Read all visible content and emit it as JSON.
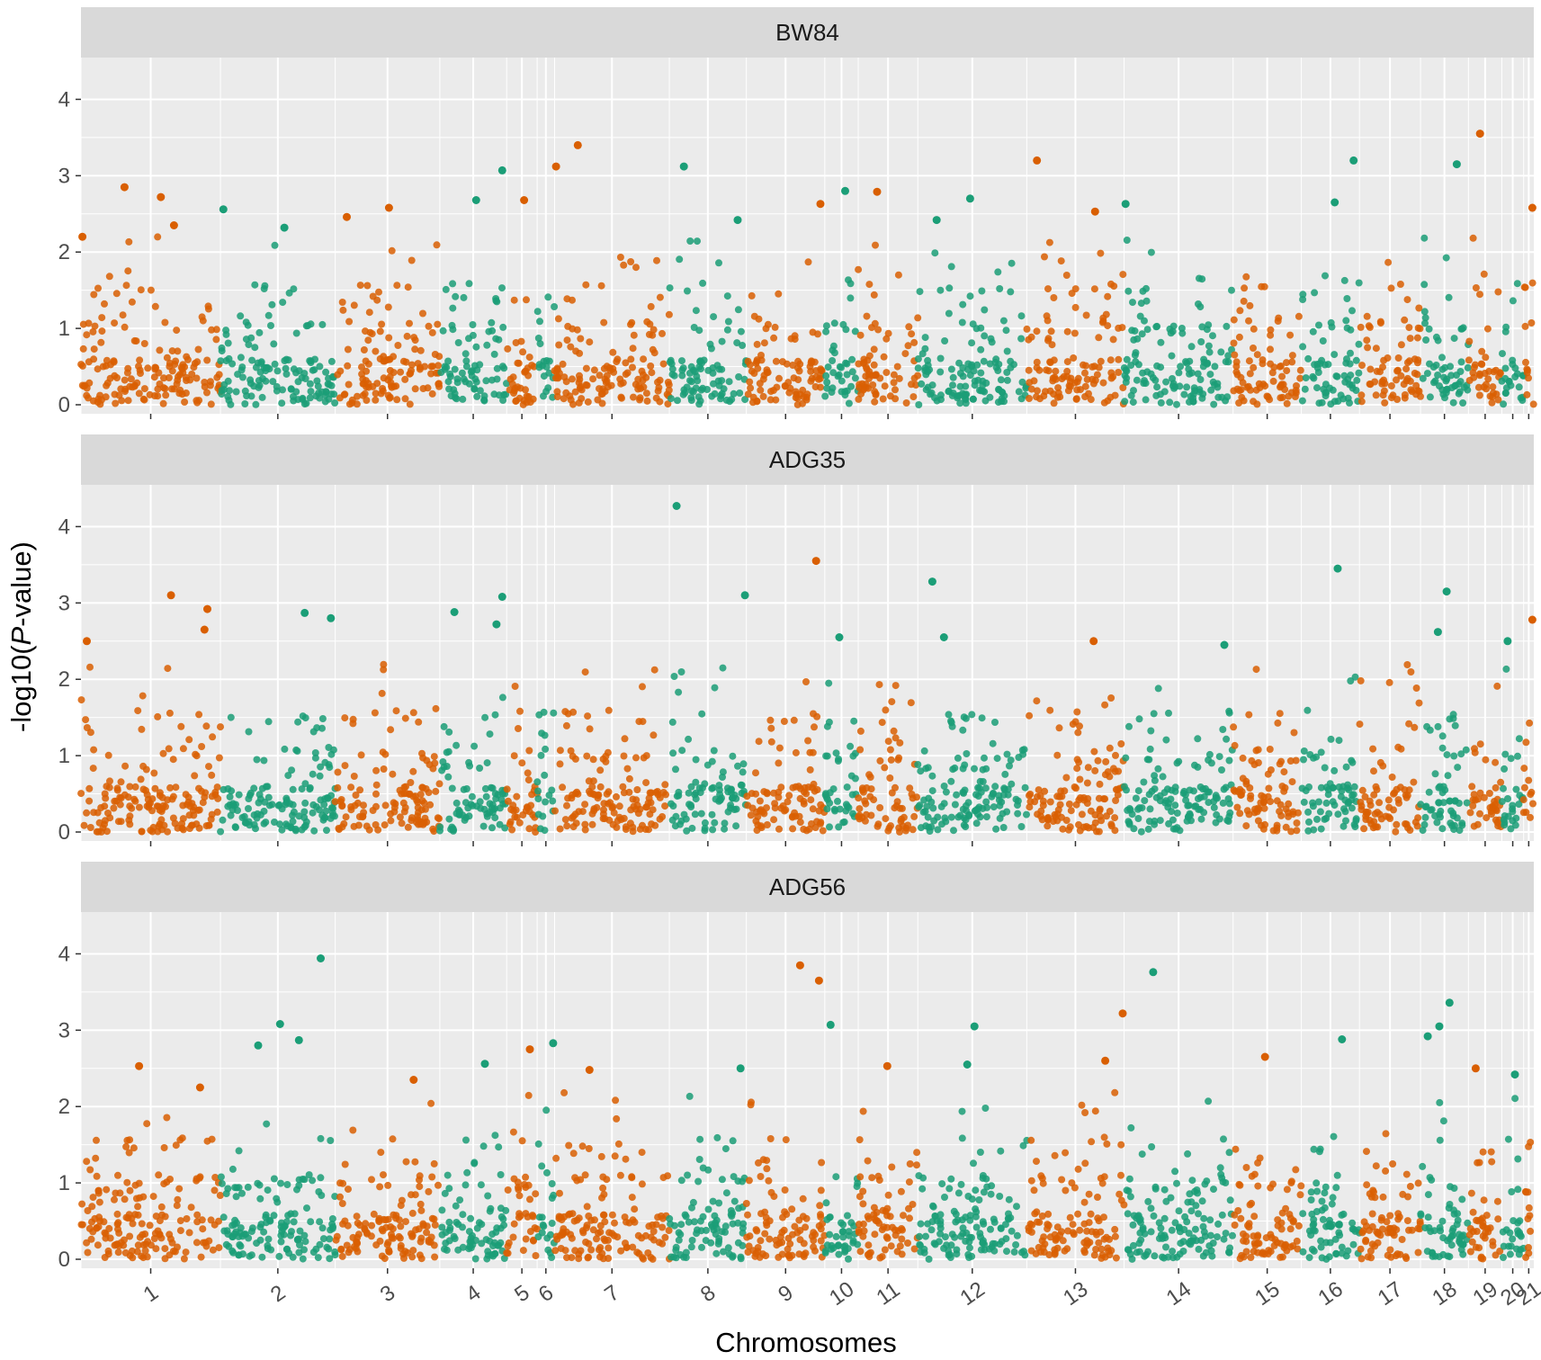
{
  "chart_data": {
    "type": "scatter",
    "subtype": "manhattan",
    "xlabel": "Chromosomes",
    "ylabel": "-log10(P-value)",
    "ylabel_parts": {
      "prefix": "-log10(",
      "italic": "P",
      "suffix": "-value)"
    },
    "ylim": [
      0,
      4.5
    ],
    "yticks": [
      0,
      1,
      2,
      3,
      4
    ],
    "colors": {
      "odd": "#D95F02",
      "even": "#1B9E77",
      "panel": "#EBEBEB",
      "strip": "#D9D9D9",
      "grid": "#FFFFFF"
    },
    "chromosomes": [
      {
        "label": "1",
        "span": [
          0,
          0.096
        ]
      },
      {
        "label": "2",
        "span": [
          0.096,
          0.175
        ]
      },
      {
        "label": "3",
        "span": [
          0.175,
          0.247
        ]
      },
      {
        "label": "4",
        "span": [
          0.247,
          0.293
        ]
      },
      {
        "label": "5",
        "span": [
          0.293,
          0.314
        ]
      },
      {
        "label": "6",
        "span": [
          0.314,
          0.326
        ]
      },
      {
        "label": "7",
        "span": [
          0.326,
          0.405
        ]
      },
      {
        "label": "8",
        "span": [
          0.405,
          0.458
        ]
      },
      {
        "label": "9",
        "span": [
          0.458,
          0.512
        ]
      },
      {
        "label": "10",
        "span": [
          0.512,
          0.535
        ]
      },
      {
        "label": "11",
        "span": [
          0.535,
          0.576
        ]
      },
      {
        "label": "12",
        "span": [
          0.576,
          0.651
        ]
      },
      {
        "label": "13",
        "span": [
          0.651,
          0.718
        ]
      },
      {
        "label": "14",
        "span": [
          0.718,
          0.793
        ]
      },
      {
        "label": "15",
        "span": [
          0.793,
          0.84
        ]
      },
      {
        "label": "16",
        "span": [
          0.84,
          0.88
        ]
      },
      {
        "label": "17",
        "span": [
          0.88,
          0.922
        ]
      },
      {
        "label": "18",
        "span": [
          0.922,
          0.955
        ]
      },
      {
        "label": "19",
        "span": [
          0.955,
          0.978
        ]
      },
      {
        "label": "20",
        "span": [
          0.978,
          0.993
        ]
      },
      {
        "label": "21",
        "span": [
          0.993,
          1.0
        ]
      }
    ],
    "panels": [
      {
        "title": "BW84",
        "peaks": [
          {
            "x": 0.001,
            "y": 2.2
          },
          {
            "x": 0.03,
            "y": 2.85
          },
          {
            "x": 0.055,
            "y": 2.72
          },
          {
            "x": 0.064,
            "y": 2.35
          },
          {
            "x": 0.098,
            "y": 2.56
          },
          {
            "x": 0.14,
            "y": 2.32
          },
          {
            "x": 0.183,
            "y": 2.46
          },
          {
            "x": 0.212,
            "y": 2.58
          },
          {
            "x": 0.272,
            "y": 2.68
          },
          {
            "x": 0.29,
            "y": 3.07
          },
          {
            "x": 0.305,
            "y": 2.68
          },
          {
            "x": 0.327,
            "y": 3.12
          },
          {
            "x": 0.342,
            "y": 3.4
          },
          {
            "x": 0.415,
            "y": 3.12
          },
          {
            "x": 0.452,
            "y": 2.42
          },
          {
            "x": 0.509,
            "y": 2.63
          },
          {
            "x": 0.526,
            "y": 2.8
          },
          {
            "x": 0.548,
            "y": 2.79
          },
          {
            "x": 0.612,
            "y": 2.7
          },
          {
            "x": 0.589,
            "y": 2.42
          },
          {
            "x": 0.658,
            "y": 3.2
          },
          {
            "x": 0.698,
            "y": 2.53
          },
          {
            "x": 0.719,
            "y": 2.63
          },
          {
            "x": 0.863,
            "y": 2.65
          },
          {
            "x": 0.876,
            "y": 3.2
          },
          {
            "x": 0.947,
            "y": 3.15
          },
          {
            "x": 0.963,
            "y": 3.55
          },
          {
            "x": 0.999,
            "y": 2.58
          }
        ]
      },
      {
        "title": "ADG35",
        "peaks": [
          {
            "x": 0.004,
            "y": 2.5
          },
          {
            "x": 0.062,
            "y": 3.1
          },
          {
            "x": 0.087,
            "y": 2.92
          },
          {
            "x": 0.085,
            "y": 2.65
          },
          {
            "x": 0.154,
            "y": 2.87
          },
          {
            "x": 0.172,
            "y": 2.8
          },
          {
            "x": 0.257,
            "y": 2.88
          },
          {
            "x": 0.29,
            "y": 3.08
          },
          {
            "x": 0.286,
            "y": 2.72
          },
          {
            "x": 0.41,
            "y": 4.27
          },
          {
            "x": 0.457,
            "y": 3.1
          },
          {
            "x": 0.506,
            "y": 3.55
          },
          {
            "x": 0.522,
            "y": 2.55
          },
          {
            "x": 0.586,
            "y": 3.28
          },
          {
            "x": 0.594,
            "y": 2.55
          },
          {
            "x": 0.697,
            "y": 2.5
          },
          {
            "x": 0.787,
            "y": 2.45
          },
          {
            "x": 0.865,
            "y": 3.45
          },
          {
            "x": 0.94,
            "y": 3.15
          },
          {
            "x": 0.934,
            "y": 2.62
          },
          {
            "x": 0.982,
            "y": 2.5
          },
          {
            "x": 0.999,
            "y": 2.78
          }
        ]
      },
      {
        "title": "ADG56",
        "peaks": [
          {
            "x": 0.04,
            "y": 2.53
          },
          {
            "x": 0.082,
            "y": 2.25
          },
          {
            "x": 0.122,
            "y": 2.8
          },
          {
            "x": 0.137,
            "y": 3.08
          },
          {
            "x": 0.15,
            "y": 2.87
          },
          {
            "x": 0.165,
            "y": 3.94
          },
          {
            "x": 0.229,
            "y": 2.35
          },
          {
            "x": 0.278,
            "y": 2.56
          },
          {
            "x": 0.309,
            "y": 2.75
          },
          {
            "x": 0.325,
            "y": 2.83
          },
          {
            "x": 0.35,
            "y": 2.48
          },
          {
            "x": 0.454,
            "y": 2.5
          },
          {
            "x": 0.495,
            "y": 3.85
          },
          {
            "x": 0.508,
            "y": 3.65
          },
          {
            "x": 0.516,
            "y": 3.07
          },
          {
            "x": 0.555,
            "y": 2.53
          },
          {
            "x": 0.615,
            "y": 3.05
          },
          {
            "x": 0.61,
            "y": 2.55
          },
          {
            "x": 0.705,
            "y": 2.6
          },
          {
            "x": 0.717,
            "y": 3.22
          },
          {
            "x": 0.738,
            "y": 3.76
          },
          {
            "x": 0.815,
            "y": 2.65
          },
          {
            "x": 0.868,
            "y": 2.88
          },
          {
            "x": 0.927,
            "y": 2.92
          },
          {
            "x": 0.935,
            "y": 3.05
          },
          {
            "x": 0.942,
            "y": 3.36
          },
          {
            "x": 0.96,
            "y": 2.5
          },
          {
            "x": 0.987,
            "y": 2.42
          }
        ]
      }
    ]
  }
}
